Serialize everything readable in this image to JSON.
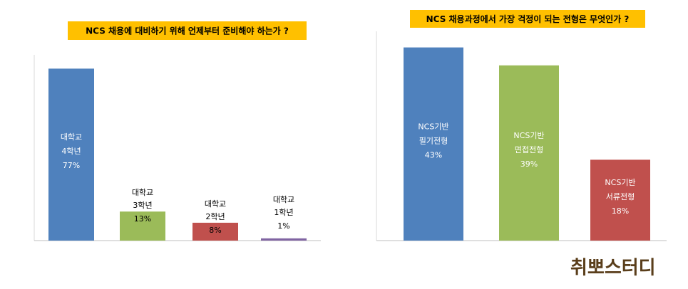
{
  "charts": [
    {
      "type": "bar",
      "title": "NCS 채용에 대비하기 위해 언제부터 준비해야 하는가 ?",
      "categories": [
        [
          "대학교",
          "4학년"
        ],
        [
          "대학교",
          "3학년"
        ],
        [
          "대학교",
          "2학년"
        ],
        [
          "대학교",
          "1학년"
        ]
      ],
      "values": [
        77,
        13,
        8,
        1
      ],
      "value_labels": [
        "77%",
        "13%",
        "8%",
        "1%"
      ],
      "colors": [
        "#4f81bd",
        "#9bbb59",
        "#c0504d",
        "#8064a2"
      ],
      "ylim": [
        0,
        80
      ]
    },
    {
      "type": "bar",
      "title": "NCS 채용과정에서 가장 걱정이 되는 전형은 무엇인가 ?",
      "categories": [
        [
          "NCS기반",
          "필기전형"
        ],
        [
          "NCS기반",
          "면접전형"
        ],
        [
          "NCS기반",
          "서류전형"
        ]
      ],
      "values": [
        43,
        39,
        18
      ],
      "value_labels": [
        "43%",
        "39%",
        "18%"
      ],
      "colors": [
        "#4f81bd",
        "#9bbb59",
        "#c0504d"
      ],
      "ylim": [
        0,
        45
      ]
    }
  ],
  "logo": "취뽀스터디"
}
